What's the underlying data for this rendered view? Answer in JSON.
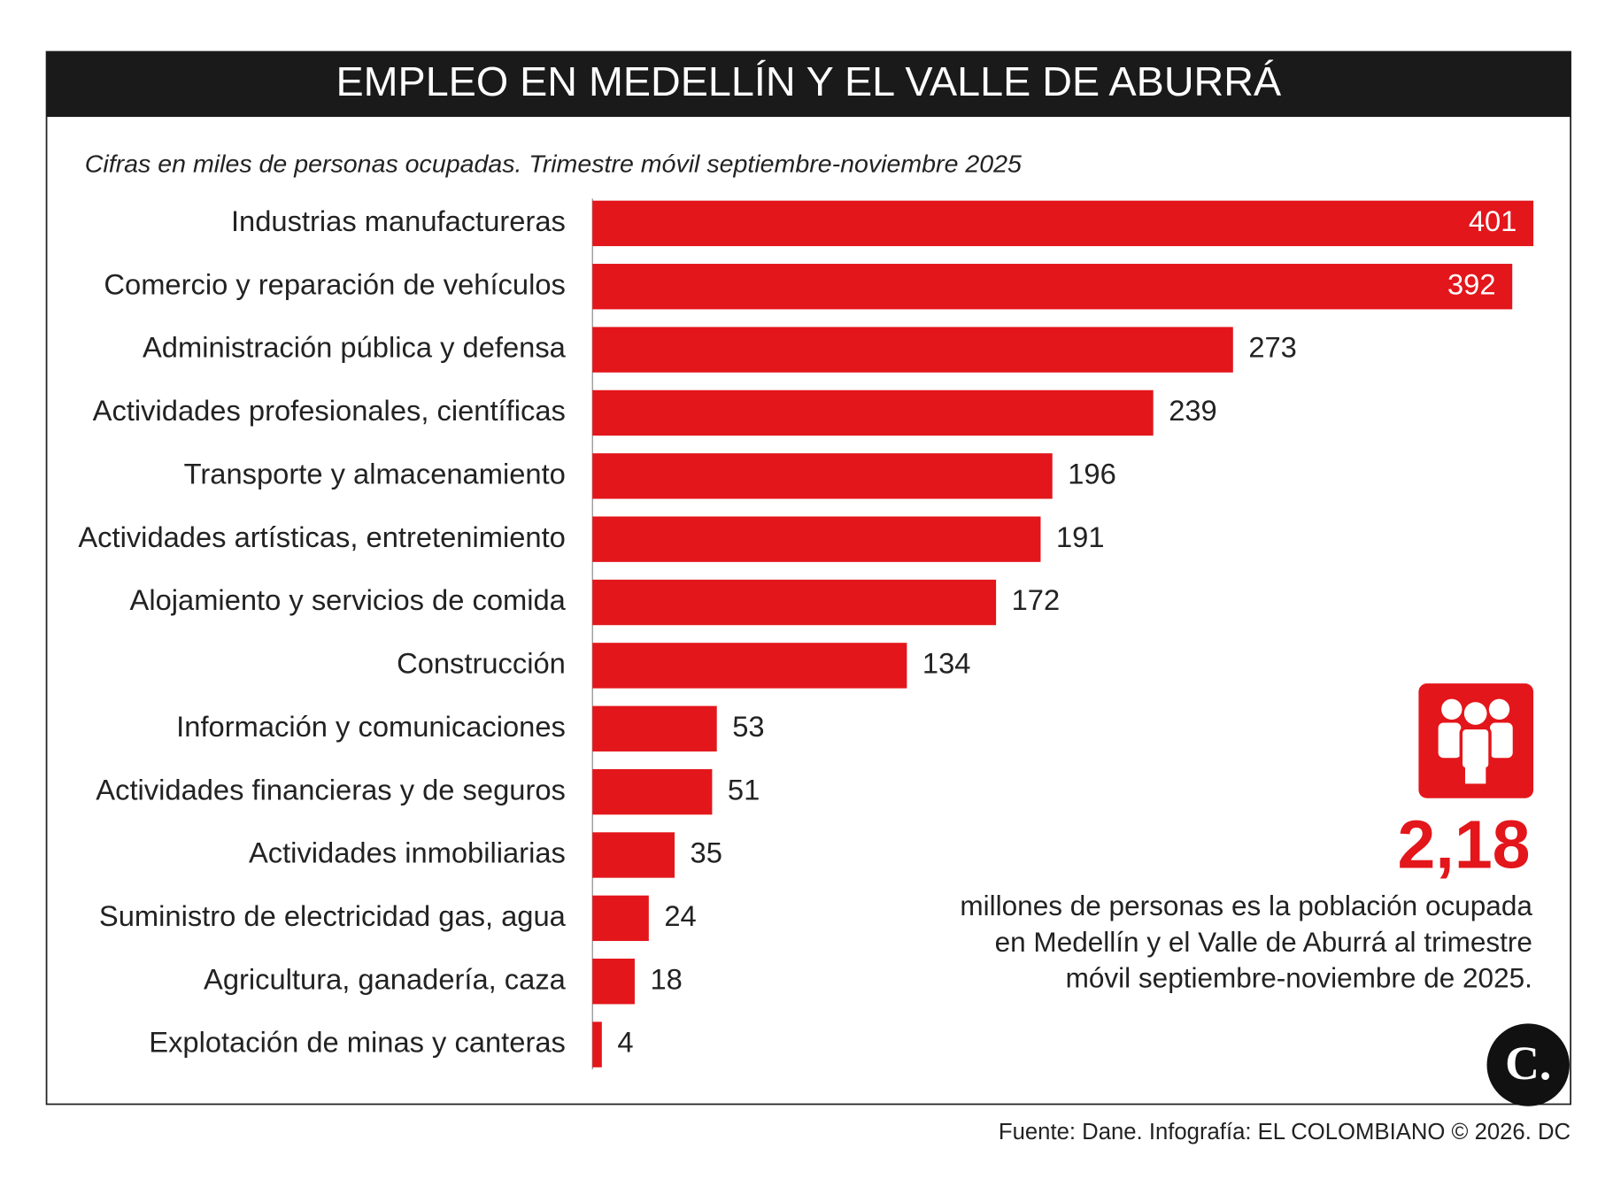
{
  "chart_data": {
    "type": "bar",
    "orientation": "horizontal",
    "title": "EMPLEO EN MEDELLÍN Y EL VALLE DE ABURRÁ",
    "subtitle": "Cifras en miles de personas ocupadas. Trimestre móvil septiembre-noviembre 2025",
    "categories": [
      "Industrias manufactureras",
      "Comercio y reparación de vehículos",
      "Administración pública y defensa",
      "Actividades profesionales, científicas",
      "Transporte y almacenamiento",
      "Actividades artísticas, entretenimiento",
      "Alojamiento y servicios de comida",
      "Construcción",
      "Información y comunicaciones",
      "Actividades financieras y de seguros",
      "Actividades inmobiliarias",
      "Suministro de electricidad gas, agua",
      "Agricultura, ganadería, caza",
      "Explotación de minas y canteras"
    ],
    "values": [
      401,
      392,
      273,
      239,
      196,
      191,
      172,
      134,
      53,
      51,
      35,
      24,
      18,
      4
    ],
    "color": "#e3161b",
    "callout": {
      "value": "2,18",
      "lines": [
        "millones de personas es la población ocupada",
        "en Medellín y el Valle de Aburrá al trimestre",
        "móvil septiembre-noviembre de 2025."
      ]
    },
    "logo": "C.",
    "source": "Fuente: Dane. Infografía: EL COLOMBIANO © 2026. DC"
  }
}
